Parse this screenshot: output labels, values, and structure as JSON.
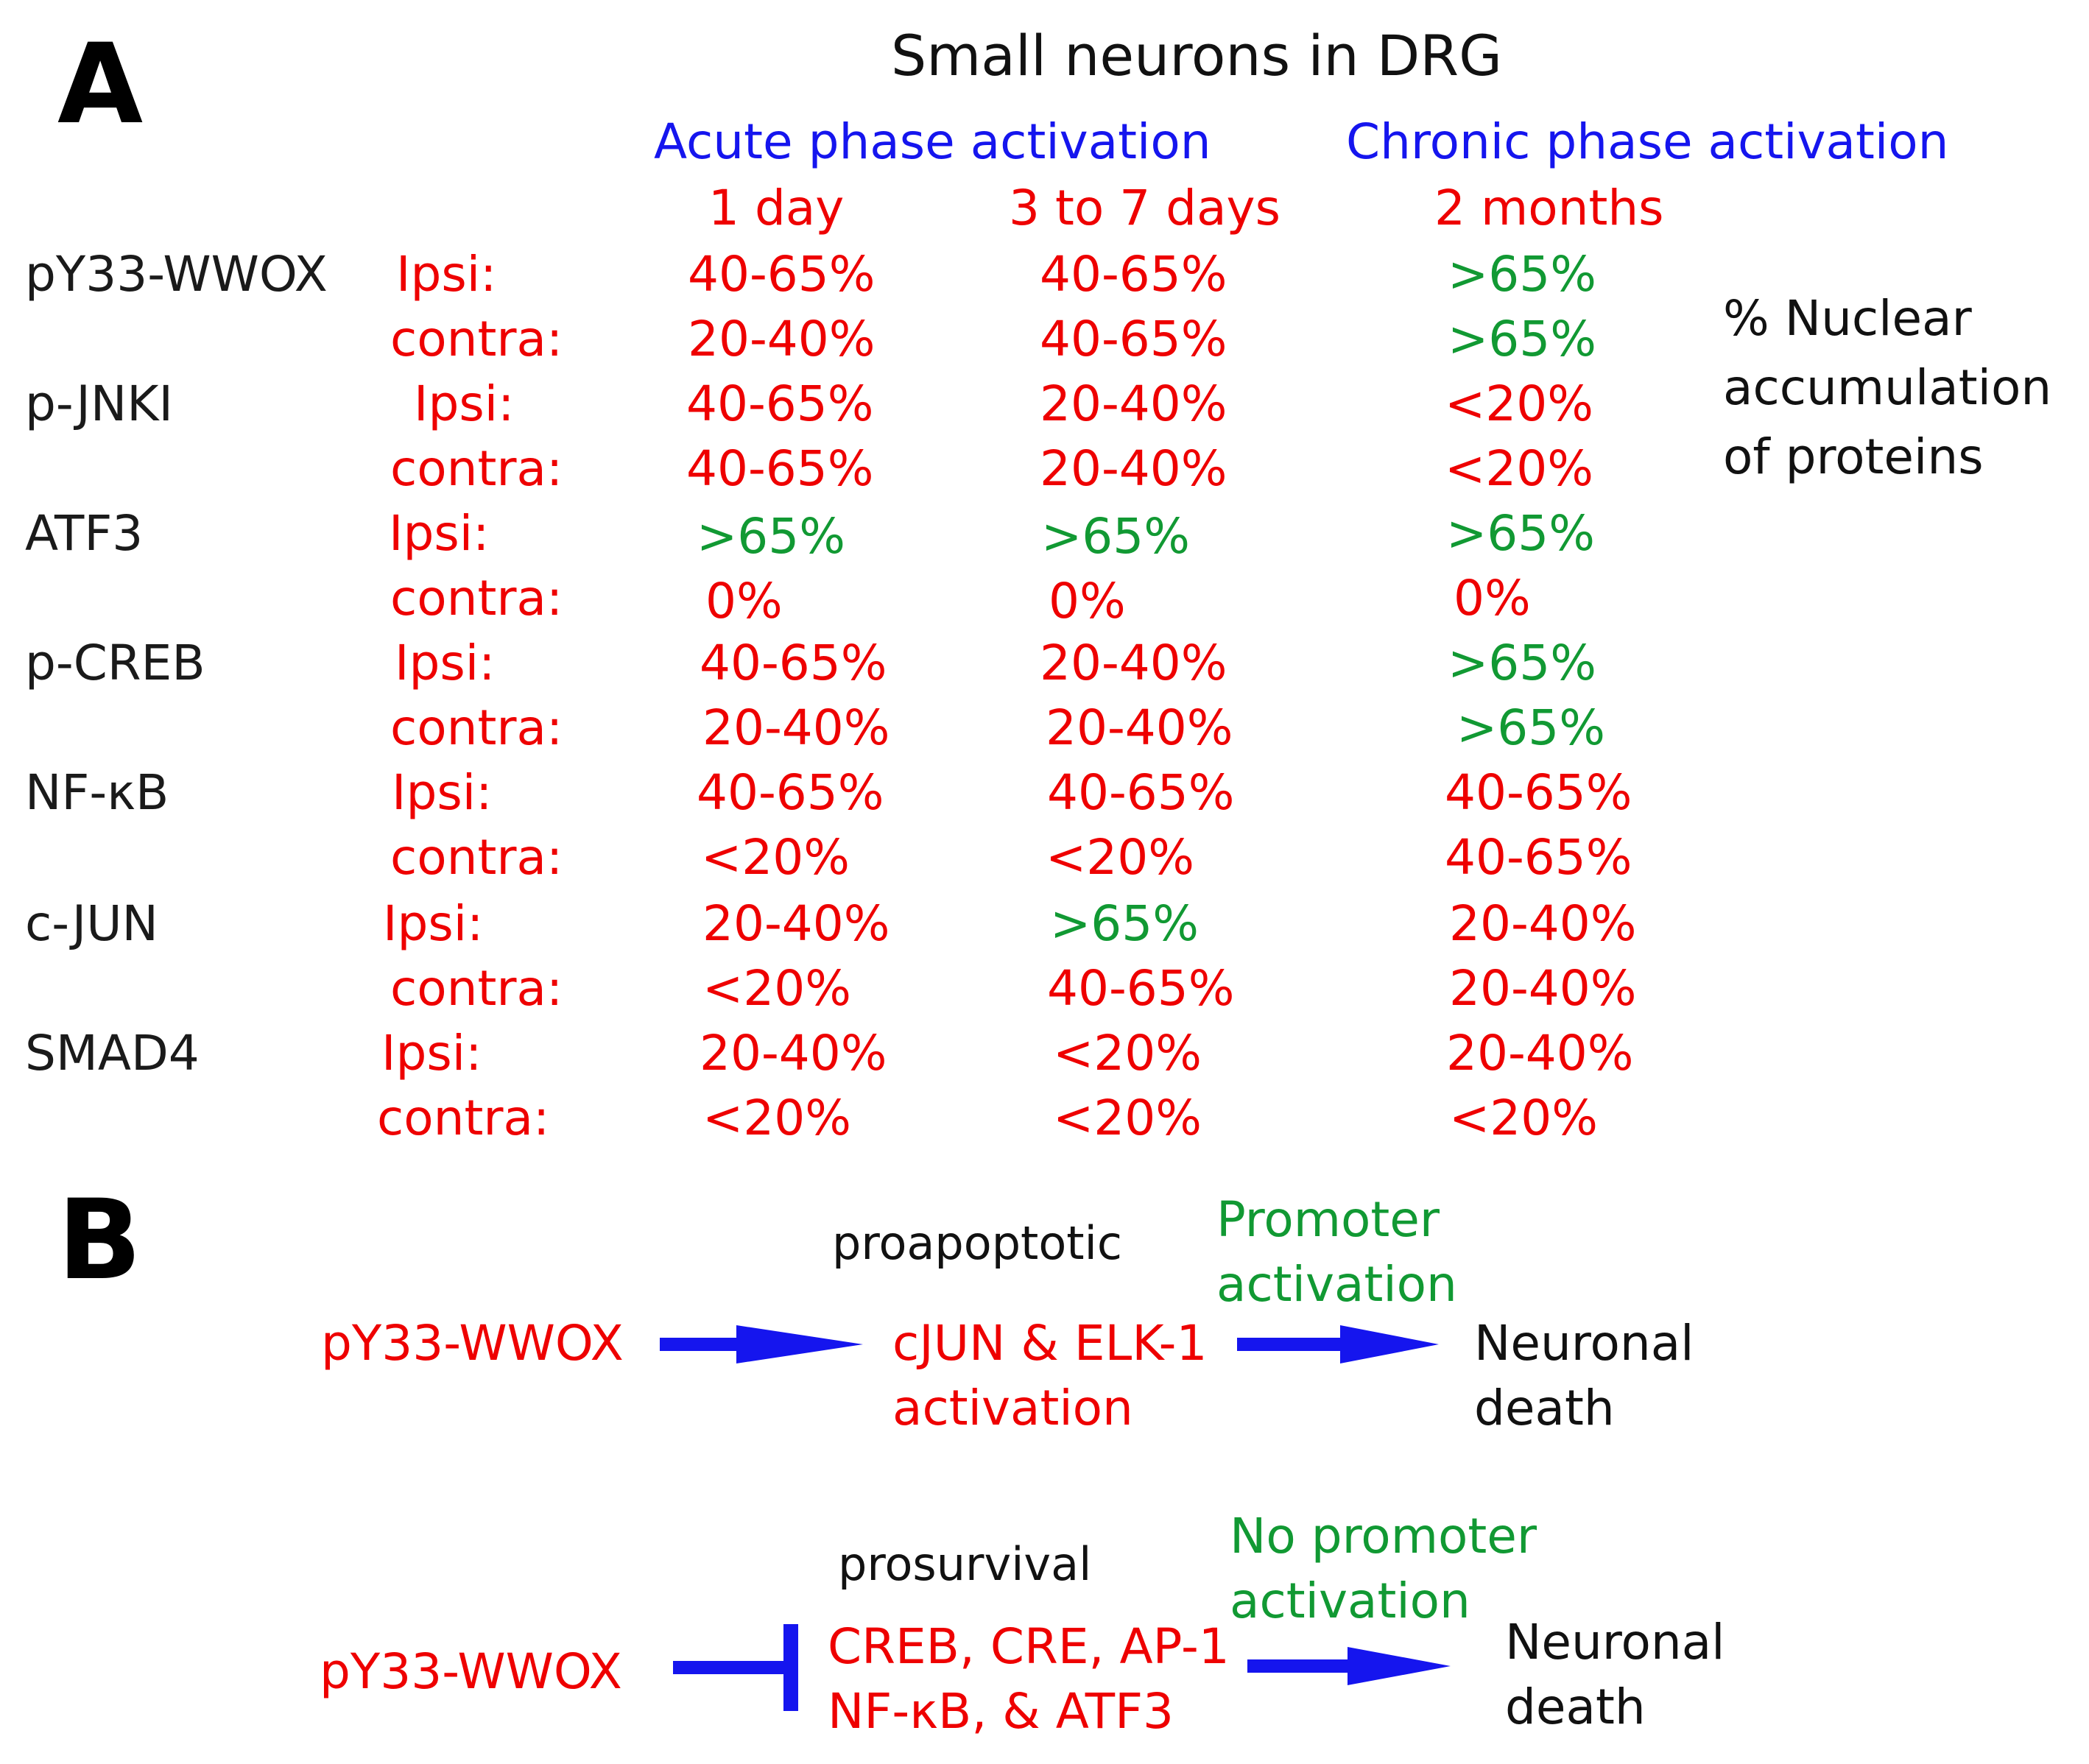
{
  "colors": {
    "red": "#ee0000",
    "green": "#119933",
    "blue": "#1515ee",
    "black": "#1a1a1a"
  },
  "panel_a": {
    "letter": "A",
    "title": "Small neurons in DRG",
    "phases": {
      "acute": "Acute phase activation",
      "chronic": "Chronic phase activation"
    },
    "timepoints": [
      "1 day",
      "3 to 7 days",
      "2 months"
    ],
    "side_note": [
      "% Nuclear",
      "accumulation",
      "of  proteins"
    ],
    "proteins": [
      {
        "name": "pY33-WWOX",
        "ipsi_label": "Ipsi:",
        "contra_label": "contra:",
        "ipsi": [
          "40-65%",
          "40-65%",
          ">65%"
        ],
        "contra": [
          "20-40%",
          "40-65%",
          ">65%"
        ]
      },
      {
        "name": "p-JNKI",
        "ipsi_label": "Ipsi:",
        "contra_label": "contra:",
        "ipsi": [
          "40-65%",
          "20-40%",
          "<20%"
        ],
        "contra": [
          "40-65%",
          "20-40%",
          "<20%"
        ]
      },
      {
        "name": "ATF3",
        "ipsi_label": "Ipsi:",
        "contra_label": "contra:",
        "ipsi": [
          ">65%",
          ">65%",
          ">65%"
        ],
        "contra": [
          "0%",
          "0%",
          "0%"
        ]
      },
      {
        "name": "p-CREB",
        "ipsi_label": "Ipsi:",
        "contra_label": "contra:",
        "ipsi": [
          "40-65%",
          "20-40%",
          ">65%"
        ],
        "contra": [
          "20-40%",
          "20-40%",
          ">65%"
        ]
      },
      {
        "name": "NF-κB",
        "ipsi_label": "Ipsi:",
        "contra_label": "contra:",
        "ipsi": [
          "40-65%",
          "40-65%",
          "40-65%"
        ],
        "contra": [
          "<20%",
          "<20%",
          "40-65%"
        ]
      },
      {
        "name": "c-JUN",
        "ipsi_label": "Ipsi:",
        "contra_label": "contra:",
        "ipsi": [
          "20-40%",
          ">65%",
          "20-40%"
        ],
        "contra": [
          "<20%",
          "40-65%",
          "20-40%"
        ]
      },
      {
        "name": "SMAD4",
        "ipsi_label": "Ipsi:",
        "contra_label": "contra:",
        "ipsi": [
          "20-40%",
          "<20%",
          "20-40%"
        ],
        "contra": [
          "<20%",
          "<20%",
          "<20%"
        ]
      }
    ]
  },
  "panel_b": {
    "letter": "B",
    "pathway1": {
      "source": "pY33-WWOX",
      "role": "proapoptotic",
      "target_line1": "cJUN & ELK-1",
      "target_line2": "activation",
      "promoter_line1": "Promoter",
      "promoter_line2": "activation",
      "outcome_line1": "Neuronal",
      "outcome_line2": "death"
    },
    "pathway2": {
      "source": "pY33-WWOX",
      "role": "prosurvival",
      "target_line1": "CREB, CRE, AP-1",
      "target_line2": "NF-κB, & ATF3",
      "promoter_line1": "No promoter",
      "promoter_line2": "activation",
      "outcome_line1": "Neuronal",
      "outcome_line2": "death"
    }
  }
}
